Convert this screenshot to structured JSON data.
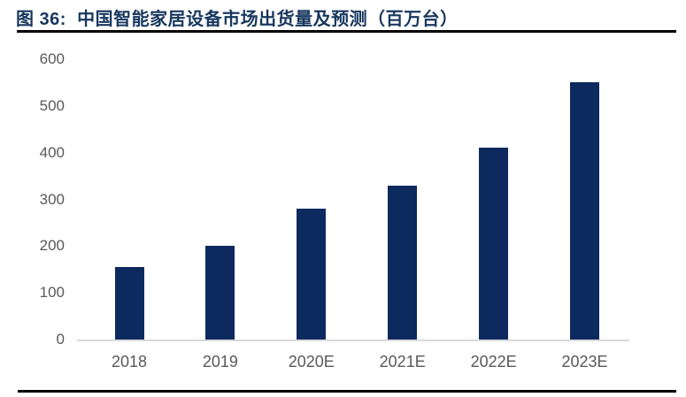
{
  "header": {
    "title": "图 36:  中国智能家居设备市场出货量及预测（百万台）"
  },
  "colors": {
    "title": "#17375d",
    "bar": "#0d2a5e",
    "tick_label": "#595959",
    "axis_line": "#d9d9d9",
    "rule": "#000000"
  },
  "chart_data": {
    "type": "bar",
    "title": "中国智能家居设备市场出货量及预测（百万台）",
    "figure_label": "图 36",
    "categories": [
      "2018",
      "2019",
      "2020E",
      "2021E",
      "2022E",
      "2023E"
    ],
    "values": [
      155,
      200,
      280,
      330,
      410,
      550
    ],
    "xlabel": "",
    "ylabel": "",
    "ylim": [
      0,
      600
    ],
    "yticks": [
      0,
      100,
      200,
      300,
      400,
      500,
      600
    ],
    "grid": false,
    "legend": "none",
    "bar_color": "#0d2a5e",
    "unit": "百万台"
  }
}
